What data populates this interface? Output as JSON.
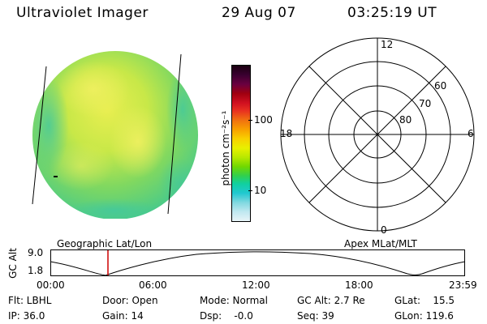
{
  "header": {
    "title": "Ultraviolet Imager",
    "date": "29 Aug 07",
    "time": "03:25:19 UT"
  },
  "colorbar": {
    "unit_label": "photon cm⁻²s⁻¹",
    "ticks": [
      "100",
      "10"
    ],
    "colors": [
      "#1a0010",
      "#3a0030",
      "#6a0040",
      "#a00010",
      "#d01020",
      "#e83020",
      "#f07010",
      "#f8a000",
      "#f8d000",
      "#e8f000",
      "#b8e800",
      "#70d800",
      "#30d050",
      "#10d0a0",
      "#20c8d0",
      "#80d8e0",
      "#c0e8f0",
      "#e8f4f8"
    ]
  },
  "polar_grid": {
    "mlt_labels": {
      "top": "12",
      "left": "18",
      "right": "6",
      "bottom": "0"
    },
    "lat_labels": [
      "60",
      "70",
      "80"
    ]
  },
  "orbit": {
    "left_label": "Geographic Lat/Lon",
    "right_label": "Apex MLat/MLT",
    "axis_title": "GC Alt",
    "y_ticks": [
      "9.0",
      "1.8"
    ],
    "x_ticks": [
      "00:00",
      "06:00",
      "12:00",
      "18:00",
      "23:59"
    ],
    "current_marker_color": "#cc0000"
  },
  "info": {
    "flt": "Flt: LBHL",
    "ip": "IP: 36.0",
    "door": "Door: Open",
    "gain": "Gain: 14",
    "mode": "Mode: Normal",
    "dsp": "Dsp:    -0.0",
    "gc_alt": "GC Alt: 2.7 Re",
    "seq": "Seq: 39",
    "glat": "GLat:    15.5",
    "glon": "GLon: 119.6"
  }
}
